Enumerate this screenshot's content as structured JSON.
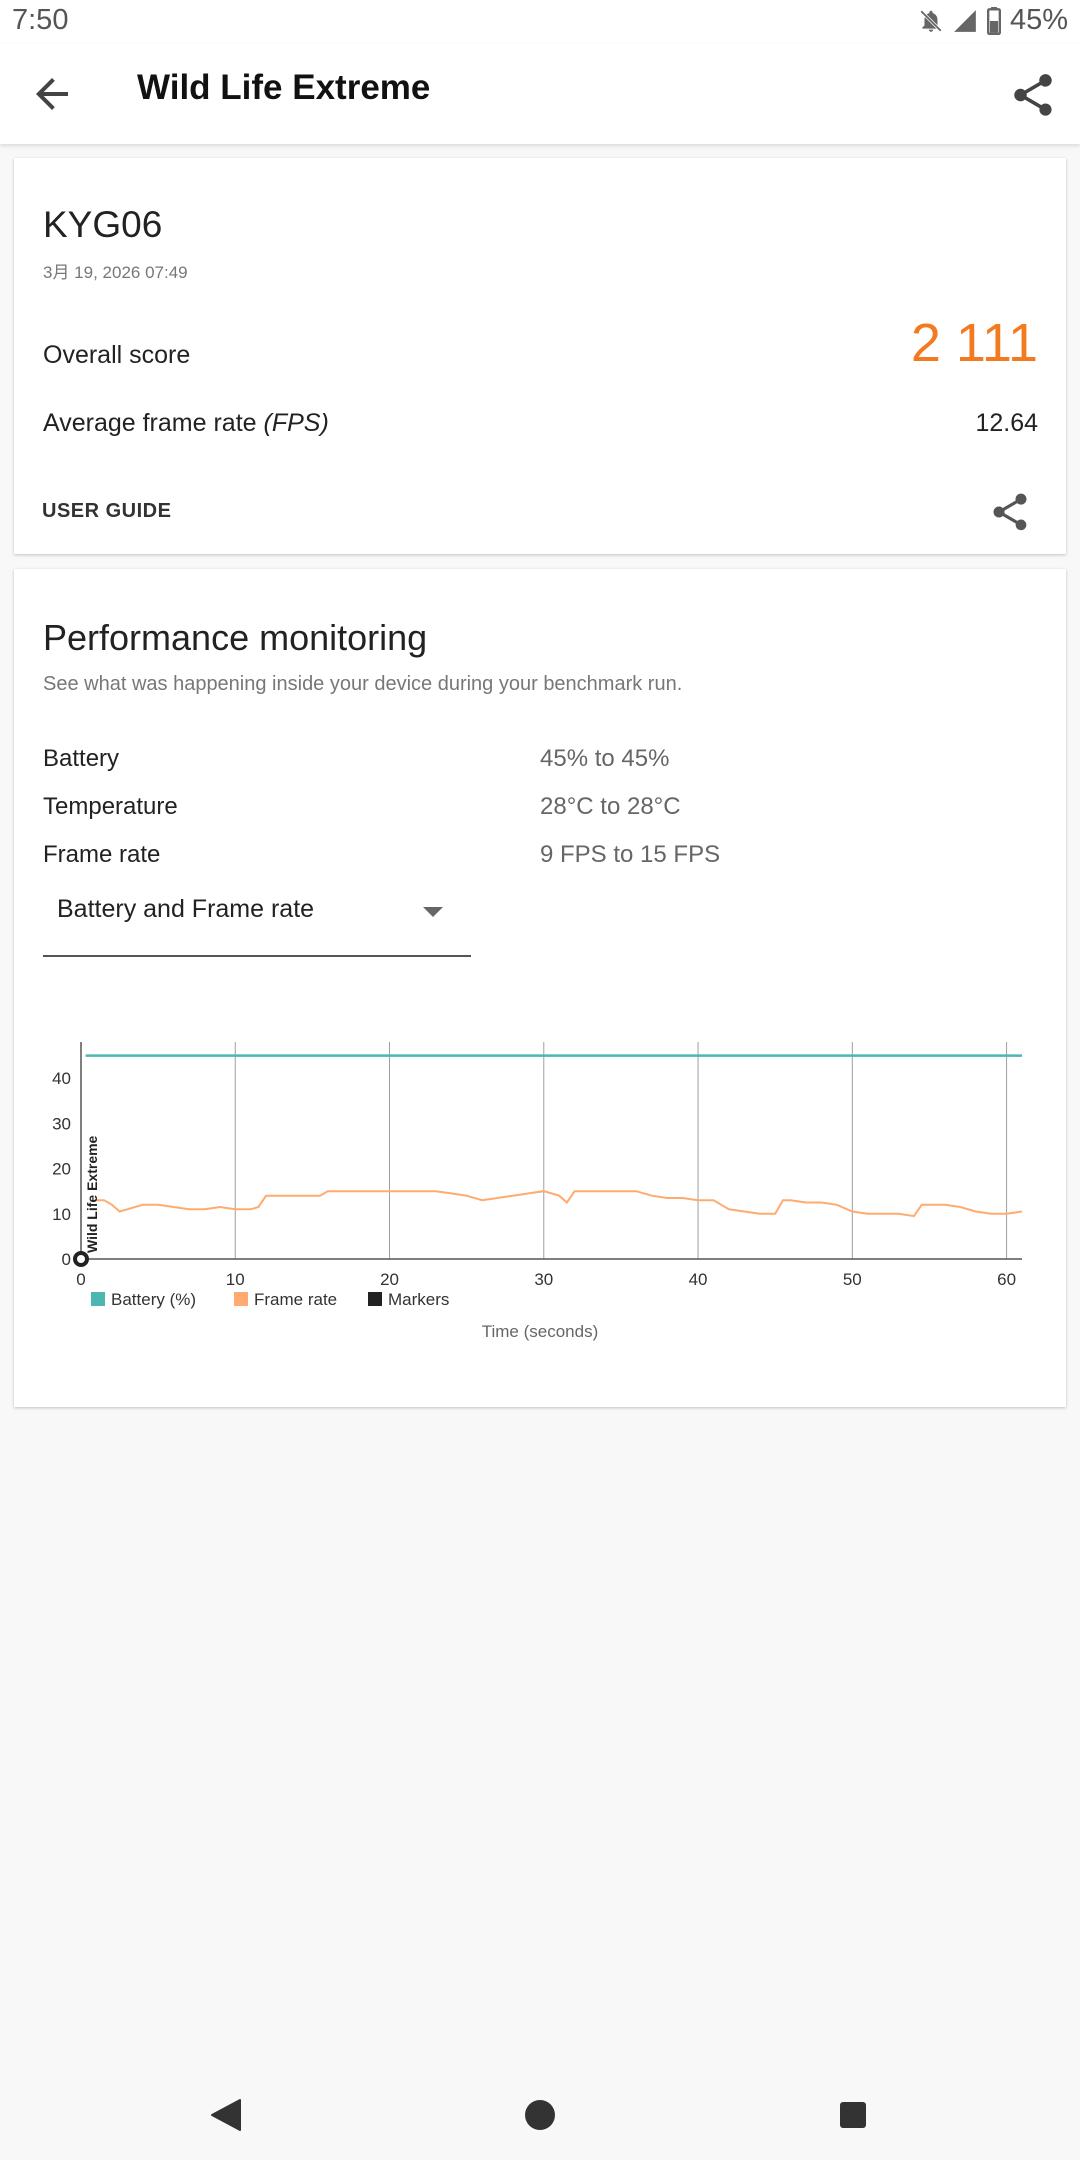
{
  "status_bar": {
    "time": "7:50",
    "battery_text": "45%",
    "icons": [
      "notifications-off-icon",
      "signal-icon",
      "battery-icon"
    ]
  },
  "app_bar": {
    "title": "Wild Life Extreme",
    "back_icon": "arrow-back-icon",
    "share_icon": "share-icon"
  },
  "result_card": {
    "device": "KYG06",
    "date": "3月 19, 2026 07:49",
    "overall_score_label": "Overall score",
    "overall_score": "2 111",
    "avg_fps_label": "Average frame rate",
    "avg_fps_unit": "(FPS)",
    "avg_fps": "12.64",
    "user_guide": "USER GUIDE",
    "accent_color": "#f47a20"
  },
  "monitoring": {
    "title": "Performance monitoring",
    "subtitle": "See what was happening inside your device during your benchmark run.",
    "stats": [
      {
        "label": "Battery",
        "value": "45% to 45%"
      },
      {
        "label": "Temperature",
        "value": "28°C to 28°C"
      },
      {
        "label": "Frame rate",
        "value": "9 FPS to 15 FPS"
      }
    ],
    "dropdown_value": "Battery and Frame rate"
  },
  "chart_data": {
    "type": "line",
    "xlabel": "Time (seconds)",
    "xlim": [
      0,
      61
    ],
    "ylim": [
      0,
      48
    ],
    "x_ticks": [
      0,
      10,
      20,
      30,
      40,
      50,
      60
    ],
    "y_ticks": [
      0,
      10,
      20,
      30,
      40
    ],
    "marker_label": "Wild Life Extreme",
    "grid": "vertical",
    "legend_position": "bottom-left",
    "legend": [
      {
        "name": "Battery (%)",
        "color": "#4db6b0"
      },
      {
        "name": "Frame rate",
        "color": "#ffab70"
      },
      {
        "name": "Markers",
        "color": "#222222"
      }
    ],
    "series": [
      {
        "name": "Battery (%)",
        "color": "#4db6b0",
        "x": [
          0.3,
          61
        ],
        "y": [
          45,
          45
        ]
      },
      {
        "name": "Frame rate",
        "color": "#ffab70",
        "x": [
          1,
          1.5,
          2,
          2.5,
          3,
          4,
          5,
          6,
          7,
          8,
          9,
          10,
          11,
          11.5,
          12,
          13,
          14,
          15,
          15.5,
          16,
          17,
          18,
          19,
          20,
          21,
          22,
          23,
          24,
          25,
          26,
          27,
          28,
          29,
          30,
          31,
          31.5,
          32,
          33,
          34,
          35,
          36,
          37,
          38,
          39,
          40,
          41,
          42,
          43,
          44,
          45,
          45.5,
          46,
          47,
          48,
          49,
          50,
          51,
          52,
          53,
          54,
          54.5,
          55,
          56,
          57,
          58,
          59,
          60,
          61
        ],
        "y": [
          13,
          13,
          12,
          10.5,
          11,
          12,
          12,
          11.5,
          11,
          11,
          11.5,
          11,
          11,
          11.5,
          14,
          14,
          14,
          14,
          14,
          15,
          15,
          15,
          15,
          15,
          15,
          15,
          15,
          14.5,
          14,
          13,
          13.5,
          14,
          14.5,
          15,
          14,
          12.5,
          15,
          15,
          15,
          15,
          15,
          14,
          13.5,
          13.5,
          13,
          13,
          11,
          10.5,
          10,
          10,
          13,
          13,
          12.5,
          12.5,
          12,
          10.5,
          10,
          10,
          10,
          9.5,
          12,
          12,
          12,
          11.5,
          10.5,
          10,
          10,
          10.5
        ]
      },
      {
        "name": "Markers",
        "color": "#222222",
        "x": [
          0
        ],
        "y": [
          0
        ]
      }
    ]
  }
}
